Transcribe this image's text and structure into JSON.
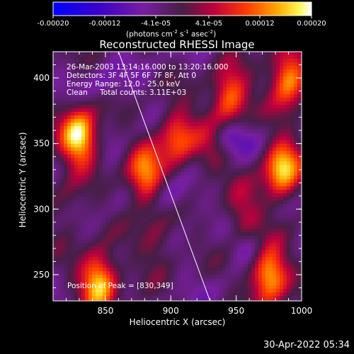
{
  "chart_data": {
    "type": "heatmap",
    "title": "Reconstructed RHESSI Image",
    "xlabel": "Heliocentric X (arcsec)",
    "ylabel": "Heliocentric Y (arcsec)",
    "xlim": [
      810,
      1000
    ],
    "ylim": [
      230,
      420
    ],
    "x_ticks": [
      850,
      900,
      950,
      1000
    ],
    "y_ticks": [
      250,
      300,
      350,
      400
    ],
    "colorbar": {
      "range": [
        -0.0002,
        0.0002
      ],
      "tick_labels": [
        "-0.00020",
        "-0.00012",
        "-4.1e-05",
        "4.1e-05",
        "0.00012",
        "0.00020"
      ],
      "unit_label": "(photons cm",
      "unit_exp1": "-2",
      "unit_mid": " s",
      "unit_exp2": "-1",
      "unit_mid2": " asec",
      "unit_exp3": "-2",
      "unit_end": ")",
      "colormap": "rainbow/heat (blue-purple-red-orange-yellow-white)"
    },
    "limb_line": {
      "from": [
        860,
        420
      ],
      "to": [
        930,
        230
      ]
    },
    "hot_regions": [
      {
        "x": 830,
        "y": 355,
        "level": 0.95
      },
      {
        "x": 845,
        "y": 245,
        "level": 0.9
      },
      {
        "x": 880,
        "y": 325,
        "level": 0.8
      },
      {
        "x": 905,
        "y": 355,
        "level": 0.75
      },
      {
        "x": 945,
        "y": 385,
        "level": 0.8
      },
      {
        "x": 985,
        "y": 330,
        "level": 0.9
      },
      {
        "x": 975,
        "y": 250,
        "level": 0.9
      },
      {
        "x": 955,
        "y": 295,
        "level": 0.6
      },
      {
        "x": 990,
        "y": 400,
        "level": 0.85
      },
      {
        "x": 930,
        "y": 345,
        "level": 0.55
      },
      {
        "x": 820,
        "y": 300,
        "level": 0.5
      },
      {
        "x": 890,
        "y": 275,
        "level": 0.55
      }
    ],
    "cold_regions": [
      {
        "x": 945,
        "y": 355,
        "level": 0.25
      },
      {
        "x": 900,
        "y": 310,
        "level": 0.3
      },
      {
        "x": 960,
        "y": 270,
        "level": 0.3
      },
      {
        "x": 850,
        "y": 395,
        "level": 0.35
      }
    ]
  },
  "info": {
    "line1": "26-Mar-2003 13:14:16.000 to 13:20:16.000",
    "line2": "Detectors: 3F 4F 5F 6F 7F 8F, Att 0",
    "line3": "Energy Range: 12.0 - 25.0 keV",
    "line4_a": "Clean",
    "line4_b": "Total counts: 3.11E+03",
    "peak": "Position of Peak = [830,349]"
  },
  "timestamp": "30-Apr-2022 05:34"
}
